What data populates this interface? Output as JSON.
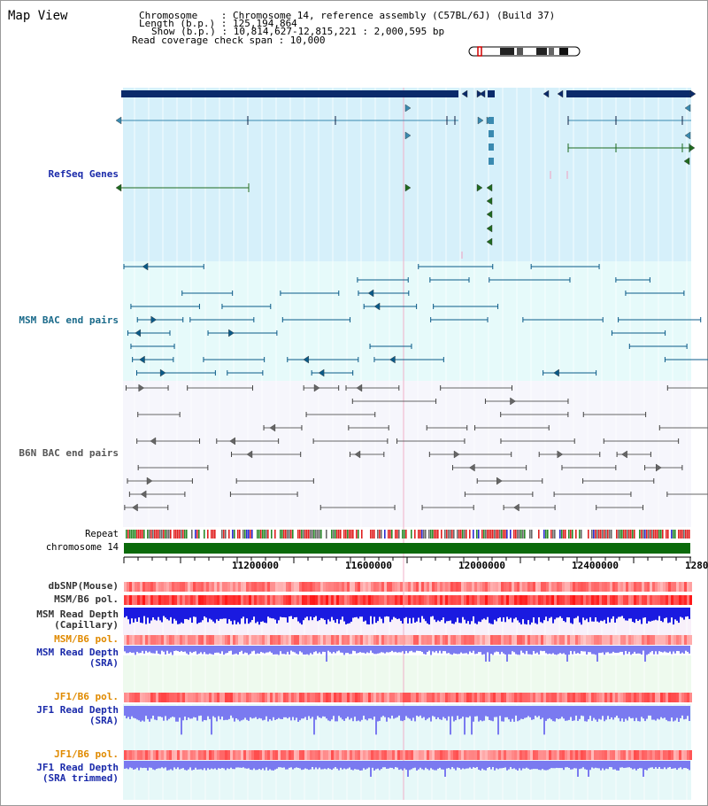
{
  "title": "Map View",
  "header": {
    "line1": "Chromosome    : Chromosome 14, reference assembly (C57BL/6J) (Build 37)",
    "line2": "Length (b.p.) : 125,194,864",
    "line3": "Show (b.p.) : 10,814,627-12,815,221 : 2,000,595 bp",
    "line4": "Read coverage check span : 10,000"
  },
  "tracks": {
    "refseq": "RefSeq Genes",
    "msm_bac": "MSM BAC end pairs",
    "b6n_bac": "B6N BAC end pairs",
    "repeat": "Repeat",
    "chromosome": "chromosome 14",
    "dbsnp": "dbSNP(Mouse)",
    "msm_b6_pol": "MSM/B6 pol.",
    "msm_read_depth_cap_1": "MSM Read Depth",
    "msm_read_depth_cap_2": "(Capillary)",
    "msm_b6_pol_2": "MSM/B6 pol.",
    "msm_read_depth_sra_1": "MSM Read Depth",
    "msm_read_depth_sra_2": "(SRA)",
    "jf1_b6_pol": "JF1/B6 pol.",
    "jf1_read_depth_sra_1": "JF1 Read Depth",
    "jf1_read_depth_sra_2": "(SRA)",
    "jf1_b6_pol_2": "JF1/B6 pol.",
    "jf1_read_depth_trim_1": "JF1 Read Depth",
    "jf1_read_depth_trim_2": "(SRA trimmed)"
  },
  "axis": {
    "ticks": [
      "11200000",
      "11600000",
      "12000000",
      "12400000",
      "1280"
    ]
  },
  "colors": {
    "refseq_bg": "#d6f0fa",
    "msm_bg": "#e6fafa",
    "b6n_bg": "#f6f6fc",
    "lower_bg": "#e6f8f8",
    "gene_dark": "#0a2a6a",
    "gene_blue": "#3a8ab0",
    "gene_green": "#1f6a1f",
    "bac_msm": "#0a5a88",
    "bac_b6n": "#666666",
    "chrom_green": "#0a6a0a",
    "depth_blue": "#1a1ae0",
    "depth_light": "#7a7af0",
    "label_blue": "#1a2aaa",
    "label_teal": "#1a6a8a",
    "label_orange": "#e08a00"
  }
}
